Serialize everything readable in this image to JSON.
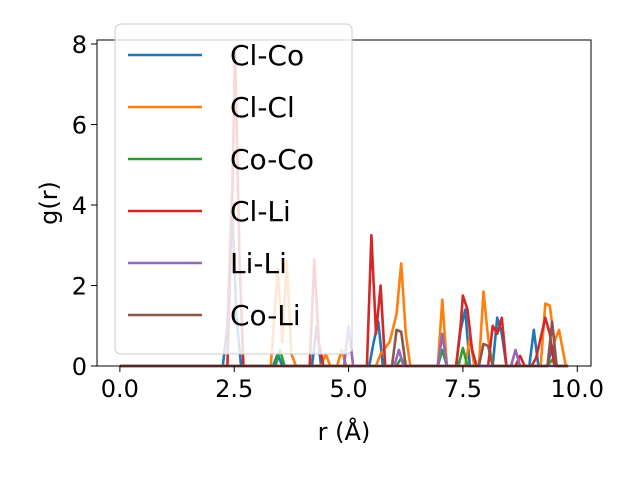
{
  "chart_data": {
    "type": "line",
    "xlabel": "r (Å)",
    "ylabel": "g(r)",
    "xlim": [
      -0.5,
      10.3
    ],
    "ylim": [
      0,
      8.1
    ],
    "xticks": [
      0.0,
      2.5,
      5.0,
      7.5,
      10.0
    ],
    "xtick_labels": [
      "0.0",
      "2.5",
      "5.0",
      "7.5",
      "10.0"
    ],
    "yticks": [
      0,
      2,
      4,
      6,
      8
    ],
    "ytick_labels": [
      "0",
      "2",
      "4",
      "6",
      "8"
    ],
    "grid": false,
    "legend": "upper-left",
    "series": [
      {
        "name": "Cl-Co",
        "color": "#1f77b4",
        "points": [
          [
            0,
            0
          ],
          [
            2.25,
            0
          ],
          [
            2.35,
            1.0
          ],
          [
            2.45,
            4.2
          ],
          [
            2.55,
            1.2
          ],
          [
            2.65,
            0
          ],
          [
            3.35,
            0
          ],
          [
            3.45,
            0.3
          ],
          [
            3.55,
            0
          ],
          [
            4.2,
            0
          ],
          [
            4.3,
            1.0
          ],
          [
            4.4,
            0
          ],
          [
            5.45,
            0
          ],
          [
            5.55,
            0.6
          ],
          [
            5.65,
            1.1
          ],
          [
            5.75,
            0
          ],
          [
            7.35,
            0
          ],
          [
            7.45,
            0.9
          ],
          [
            7.55,
            1.4
          ],
          [
            7.65,
            0
          ],
          [
            8.15,
            0
          ],
          [
            8.25,
            1.2
          ],
          [
            8.35,
            0.8
          ],
          [
            8.45,
            0
          ],
          [
            8.95,
            0
          ],
          [
            9.05,
            0.9
          ],
          [
            9.15,
            0
          ],
          [
            9.35,
            0
          ],
          [
            9.45,
            0.5
          ],
          [
            9.55,
            0
          ],
          [
            9.8,
            0
          ]
        ]
      },
      {
        "name": "Cl-Cl",
        "color": "#ff7f0e",
        "points": [
          [
            0,
            0
          ],
          [
            3.3,
            0
          ],
          [
            3.45,
            2.4
          ],
          [
            3.55,
            0.6
          ],
          [
            3.65,
            2.6
          ],
          [
            3.75,
            0.3
          ],
          [
            3.85,
            0
          ],
          [
            4.4,
            0
          ],
          [
            4.5,
            0.3
          ],
          [
            4.6,
            0
          ],
          [
            4.75,
            0
          ],
          [
            4.85,
            0.4
          ],
          [
            4.95,
            0
          ],
          [
            5.6,
            0
          ],
          [
            5.7,
            0.3
          ],
          [
            5.9,
            0.6
          ],
          [
            6.05,
            1.3
          ],
          [
            6.15,
            2.55
          ],
          [
            6.25,
            0.8
          ],
          [
            6.35,
            0
          ],
          [
            6.95,
            0
          ],
          [
            7.05,
            1.65
          ],
          [
            7.15,
            0
          ],
          [
            7.55,
            0
          ],
          [
            7.65,
            0.7
          ],
          [
            7.75,
            0
          ],
          [
            7.85,
            0
          ],
          [
            7.95,
            1.85
          ],
          [
            8.05,
            0.7
          ],
          [
            8.15,
            0
          ],
          [
            9.2,
            0
          ],
          [
            9.3,
            1.55
          ],
          [
            9.4,
            1.5
          ],
          [
            9.5,
            0.6
          ],
          [
            9.6,
            0.9
          ],
          [
            9.75,
            0
          ]
        ]
      },
      {
        "name": "Co-Co",
        "color": "#2ca02c",
        "points": [
          [
            0,
            0
          ],
          [
            3.4,
            0
          ],
          [
            3.5,
            0.4
          ],
          [
            3.6,
            0
          ],
          [
            6.05,
            0
          ],
          [
            6.15,
            0.2
          ],
          [
            6.25,
            0
          ],
          [
            6.95,
            0
          ],
          [
            7.05,
            0.4
          ],
          [
            7.15,
            0
          ],
          [
            7.4,
            0
          ],
          [
            7.5,
            0.45
          ],
          [
            7.6,
            0
          ],
          [
            9.35,
            0
          ],
          [
            9.45,
            0.15
          ],
          [
            9.55,
            0
          ],
          [
            9.8,
            0
          ]
        ]
      },
      {
        "name": "Cl-Li",
        "color": "#d62728",
        "points": [
          [
            0,
            0
          ],
          [
            2.35,
            0
          ],
          [
            2.45,
            3.8
          ],
          [
            2.52,
            7.8
          ],
          [
            2.62,
            2.5
          ],
          [
            2.7,
            0
          ],
          [
            4.15,
            0
          ],
          [
            4.25,
            2.65
          ],
          [
            4.35,
            0.6
          ],
          [
            4.45,
            0
          ],
          [
            5.4,
            0
          ],
          [
            5.5,
            3.25
          ],
          [
            5.6,
            0.8
          ],
          [
            5.7,
            2.0
          ],
          [
            5.8,
            0
          ],
          [
            7.35,
            0
          ],
          [
            7.45,
            1.0
          ],
          [
            7.5,
            1.75
          ],
          [
            7.6,
            1.4
          ],
          [
            7.7,
            0.4
          ],
          [
            7.8,
            0
          ],
          [
            8.05,
            0
          ],
          [
            8.15,
            1.0
          ],
          [
            8.25,
            0.8
          ],
          [
            8.35,
            1.2
          ],
          [
            8.45,
            0
          ],
          [
            8.65,
            0
          ],
          [
            8.75,
            0.25
          ],
          [
            8.85,
            0
          ],
          [
            9.0,
            0
          ],
          [
            9.1,
            0.2
          ],
          [
            9.3,
            1.2
          ],
          [
            9.4,
            0.8
          ],
          [
            9.5,
            0
          ],
          [
            9.8,
            0
          ]
        ]
      },
      {
        "name": "Li-Li",
        "color": "#9467bd",
        "points": [
          [
            0,
            0
          ],
          [
            4.9,
            0
          ],
          [
            5.0,
            1.0
          ],
          [
            5.1,
            0
          ],
          [
            6.0,
            0
          ],
          [
            6.1,
            0.4
          ],
          [
            6.2,
            0
          ],
          [
            6.95,
            0
          ],
          [
            7.05,
            0.8
          ],
          [
            7.15,
            0
          ],
          [
            8.55,
            0
          ],
          [
            8.65,
            0.4
          ],
          [
            8.75,
            0
          ],
          [
            9.8,
            0
          ]
        ]
      },
      {
        "name": "Co-Li",
        "color": "#8c564b",
        "points": [
          [
            0,
            0
          ],
          [
            5.95,
            0
          ],
          [
            6.05,
            0.9
          ],
          [
            6.15,
            0.85
          ],
          [
            6.25,
            0
          ],
          [
            7.85,
            0
          ],
          [
            7.95,
            0.55
          ],
          [
            8.05,
            0.5
          ],
          [
            8.15,
            0
          ],
          [
            9.35,
            0
          ],
          [
            9.45,
            1.1
          ],
          [
            9.55,
            0
          ],
          [
            9.8,
            0
          ]
        ]
      }
    ]
  }
}
